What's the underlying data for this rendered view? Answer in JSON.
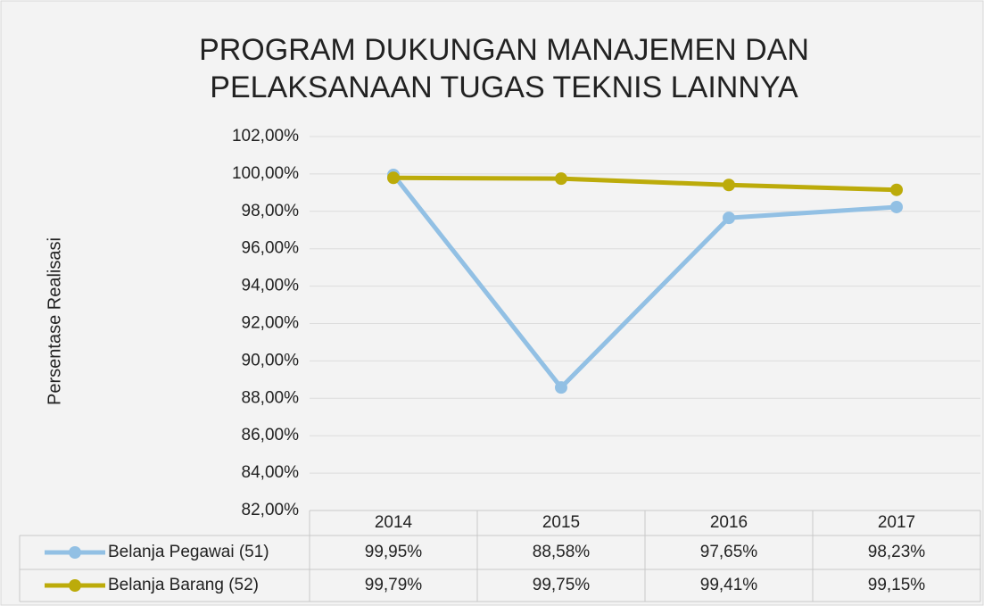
{
  "chart_data": {
    "type": "line",
    "title": [
      "PROGRAM DUKUNGAN MANAJEMEN DAN",
      "PELAKSANAAN TUGAS TEKNIS LAINNYA"
    ],
    "y_label": "Persentase Realisasi",
    "categories": [
      "2014",
      "2015",
      "2016",
      "2017"
    ],
    "series": [
      {
        "name": "Belanja Pegawai (51)",
        "color": "#92c0e4",
        "values": [
          99.95,
          88.58,
          97.65,
          98.23
        ],
        "value_labels": [
          "99,95%",
          "88,58%",
          "97,65%",
          "98,23%"
        ]
      },
      {
        "name": "Belanja Barang (52)",
        "color": "#bcab0a",
        "values": [
          99.79,
          99.75,
          99.41,
          99.15
        ],
        "value_labels": [
          "99,79%",
          "99,75%",
          "99,41%",
          "99,15%"
        ]
      }
    ],
    "ylim": [
      82,
      102
    ],
    "yticks": [
      {
        "value": 82,
        "label": "82,00%"
      },
      {
        "value": 84,
        "label": "84,00%"
      },
      {
        "value": 86,
        "label": "86,00%"
      },
      {
        "value": 88,
        "label": "88,00%"
      },
      {
        "value": 90,
        "label": "90,00%"
      },
      {
        "value": 92,
        "label": "92,00%"
      },
      {
        "value": 94,
        "label": "94,00%"
      },
      {
        "value": 96,
        "label": "96,00%"
      },
      {
        "value": 98,
        "label": "98,00%"
      },
      {
        "value": 100,
        "label": "100,00%"
      },
      {
        "value": 102,
        "label": "102,00%"
      }
    ],
    "grid": true
  }
}
